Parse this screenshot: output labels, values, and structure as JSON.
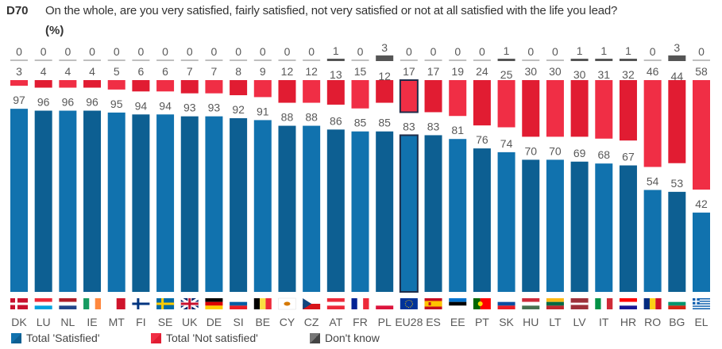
{
  "header": {
    "code": "D70",
    "question": "On the whole, are you very satisfied, fairly satisfied, not very satisfied or not at all satisfied with the life you lead?",
    "unit": "(%)"
  },
  "colors": {
    "satisfied": "#1172ae",
    "satisfied_alt": "#0d5f92",
    "not_satisfied": "#f02e45",
    "not_satisfied_alt": "#e11c32",
    "dont_know": "#555555",
    "zero_line": "#bfbfbf",
    "highlight_outline": "#1f2d4a",
    "highlight_label": "#1f3a6b"
  },
  "legend": [
    {
      "name": "Total 'Satisfied'",
      "color": "#1172ae"
    },
    {
      "name": "Total 'Not satisfied'",
      "color": "#f02e45"
    },
    {
      "name": "Don't know",
      "color": "#555555"
    }
  ],
  "chart_data": {
    "type": "bar",
    "title": "D70 On the whole, are you very satisfied, fairly satisfied, not very satisfied or not at all satisfied with the life you lead? (%)",
    "xlabel": "",
    "ylabel": "%",
    "ylim": [
      0,
      100
    ],
    "grid": false,
    "legend_position": "bottom-left",
    "highlight_category": "EU28",
    "categories": [
      "DK",
      "LU",
      "NL",
      "IE",
      "MT",
      "FI",
      "SE",
      "UK",
      "DE",
      "SI",
      "BE",
      "CY",
      "CZ",
      "AT",
      "FR",
      "PL",
      "EU28",
      "ES",
      "EE",
      "PT",
      "SK",
      "HU",
      "LT",
      "LV",
      "IT",
      "HR",
      "RO",
      "BG",
      "EL"
    ],
    "series": [
      {
        "name": "Total 'Satisfied'",
        "values": [
          97,
          96,
          96,
          96,
          95,
          94,
          94,
          93,
          93,
          92,
          91,
          88,
          88,
          86,
          85,
          85,
          83,
          83,
          81,
          76,
          74,
          70,
          70,
          69,
          68,
          67,
          54,
          53,
          42
        ]
      },
      {
        "name": "Total 'Not satisfied'",
        "values": [
          3,
          4,
          4,
          4,
          5,
          6,
          6,
          7,
          7,
          8,
          9,
          12,
          12,
          13,
          15,
          12,
          17,
          17,
          19,
          24,
          25,
          30,
          30,
          30,
          31,
          32,
          46,
          44,
          58
        ]
      },
      {
        "name": "Don't know",
        "values": [
          0,
          0,
          0,
          0,
          0,
          0,
          0,
          0,
          0,
          0,
          0,
          0,
          0,
          1,
          0,
          3,
          0,
          0,
          0,
          0,
          1,
          0,
          0,
          1,
          1,
          1,
          0,
          3,
          0
        ]
      }
    ]
  }
}
